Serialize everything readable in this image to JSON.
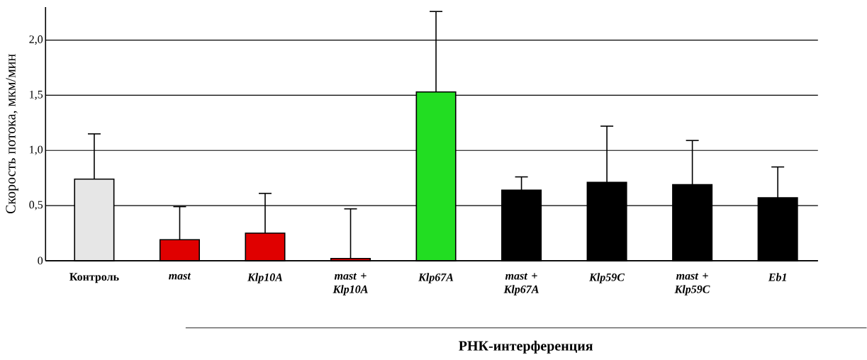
{
  "chart_data": {
    "type": "bar",
    "ylabel": "Скорость потока, мкм/мин",
    "categories": [
      "Контроль",
      "*mast*",
      "*Klp10A*",
      "*mast* + *Klp10A*",
      "*Klp67A*",
      "*mast* + *Klp67A*",
      "*Klp59C*",
      "*mast* + *Klp59C*",
      "*Eb1*"
    ],
    "values": [
      0.74,
      0.19,
      0.25,
      0.02,
      1.53,
      0.64,
      0.71,
      0.69,
      0.57
    ],
    "errors": [
      [
        0.74,
        1.15
      ],
      [
        0.19,
        0.49
      ],
      [
        0.25,
        0.61
      ],
      [
        0.02,
        0.47
      ],
      [
        1.53,
        2.26
      ],
      [
        0.64,
        0.76
      ],
      [
        0.71,
        1.22
      ],
      [
        0.69,
        1.09
      ],
      [
        0.57,
        0.85
      ]
    ],
    "colors": [
      "#e6e6e6",
      "#e00000",
      "#e00000",
      "#e00000",
      "#22dd22",
      "#000000",
      "#000000",
      "#000000",
      "#000000"
    ],
    "ylim": [
      0,
      2.3
    ],
    "yticks": [
      0,
      {
        "value": 0.5,
        "label": "0,5"
      },
      {
        "value": 1.0,
        "label": "1,0"
      },
      {
        "value": 1.5,
        "label": "1,5"
      },
      {
        "value": 2.0,
        "label": "2,0"
      }
    ],
    "grid": "y",
    "annotations": [
      "РНК-интерференция"
    ]
  }
}
